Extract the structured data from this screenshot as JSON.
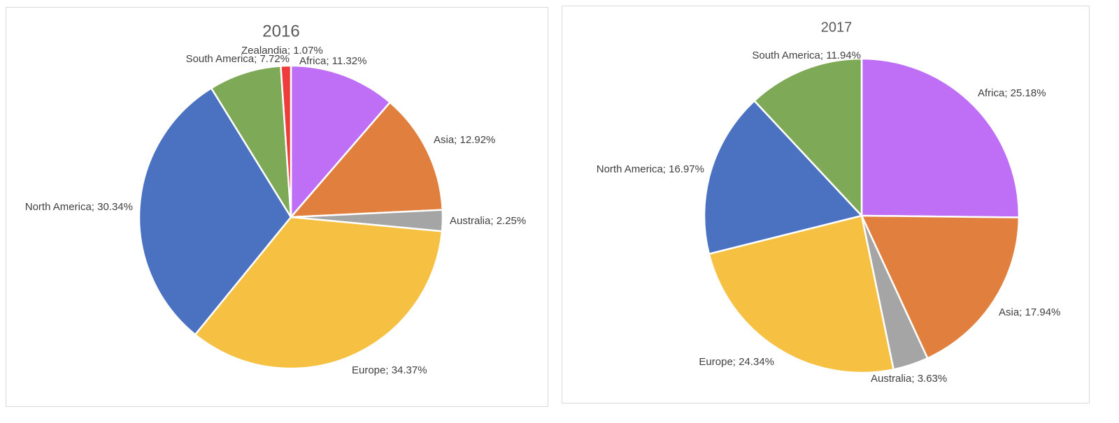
{
  "chart_data": [
    {
      "type": "pie",
      "title": "2016",
      "values": [
        11.32,
        12.92,
        2.25,
        34.37,
        30.34,
        7.72,
        1.07
      ],
      "value_labels": [
        "Africa; 11.32%",
        "Asia; 12.92%",
        "Australia; 2.25%",
        "Europe; 34.37%",
        "North America; 30.34%",
        "South America; 7.72%",
        "Zealandia; 1.07%"
      ],
      "colors": [
        "#bf6ff5",
        "#e07f3e",
        "#a5a5a5",
        "#f6c143",
        "#4a72c1",
        "#7ea956",
        "#ee3b3b"
      ]
    },
    {
      "type": "pie",
      "title": "2017",
      "values": [
        25.18,
        17.94,
        3.63,
        24.34,
        16.97,
        11.94
      ],
      "value_labels": [
        "Africa; 25.18%",
        "Asia; 17.94%",
        "Australia; 3.63%",
        "Europe; 24.34%",
        "North America; 16.97%",
        "South America; 11.94%"
      ],
      "colors": [
        "#bf6ff5",
        "#e07f3e",
        "#a5a5a5",
        "#f6c143",
        "#4a72c1",
        "#7ea956"
      ]
    }
  ]
}
